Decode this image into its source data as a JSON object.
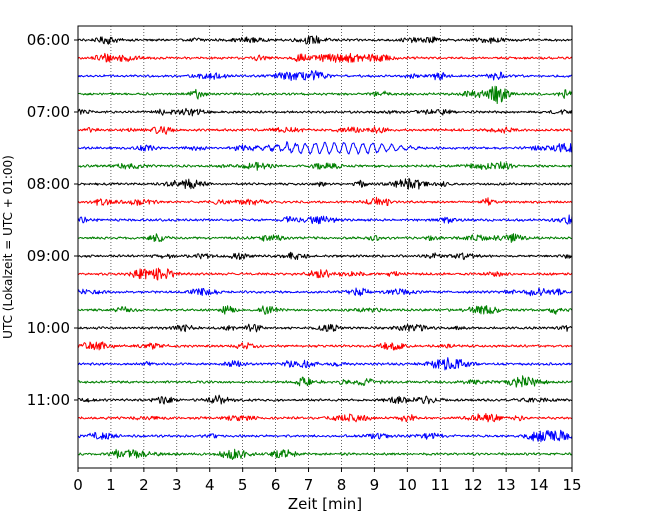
{
  "chart_data": {
    "type": "line",
    "title": "",
    "xlabel": "Zeit  [min]",
    "ylabel": "UTC (Lokalzeit = UTC + 01:00)",
    "xlim": [
      0,
      15
    ],
    "x_ticks": [
      "0",
      "1",
      "2",
      "3",
      "4",
      "5",
      "6",
      "7",
      "8",
      "9",
      "10",
      "11",
      "12",
      "13",
      "14",
      "15"
    ],
    "x_grid": true,
    "y_grid": false,
    "y_tick_labels": [
      "06:00",
      "07:00",
      "08:00",
      "09:00",
      "10:00",
      "11:00"
    ],
    "trace_interval_min": 15,
    "trace_colors": [
      "#000000",
      "#ff0000",
      "#0000ff",
      "#008000"
    ],
    "traces": [
      {
        "start": "06:00",
        "color": "#000000"
      },
      {
        "start": "06:15",
        "color": "#ff0000"
      },
      {
        "start": "06:30",
        "color": "#0000ff"
      },
      {
        "start": "06:45",
        "color": "#008000"
      },
      {
        "start": "07:00",
        "color": "#000000"
      },
      {
        "start": "07:15",
        "color": "#ff0000"
      },
      {
        "start": "07:30",
        "color": "#0000ff",
        "event": {
          "start_min": 5.1,
          "end_min": 10.6,
          "peak_min": 8.5,
          "period_min": 0.29
        }
      },
      {
        "start": "07:45",
        "color": "#008000"
      },
      {
        "start": "08:00",
        "color": "#000000"
      },
      {
        "start": "08:15",
        "color": "#ff0000"
      },
      {
        "start": "08:30",
        "color": "#0000ff"
      },
      {
        "start": "08:45",
        "color": "#008000"
      },
      {
        "start": "09:00",
        "color": "#000000"
      },
      {
        "start": "09:15",
        "color": "#ff0000"
      },
      {
        "start": "09:30",
        "color": "#0000ff"
      },
      {
        "start": "09:45",
        "color": "#008000"
      },
      {
        "start": "10:00",
        "color": "#000000"
      },
      {
        "start": "10:15",
        "color": "#ff0000"
      },
      {
        "start": "10:30",
        "color": "#0000ff"
      },
      {
        "start": "10:45",
        "color": "#008000"
      },
      {
        "start": "11:00",
        "color": "#000000"
      },
      {
        "start": "11:15",
        "color": "#ff0000"
      },
      {
        "start": "11:30",
        "color": "#0000ff"
      },
      {
        "start": "11:45",
        "color": "#008000"
      }
    ]
  }
}
